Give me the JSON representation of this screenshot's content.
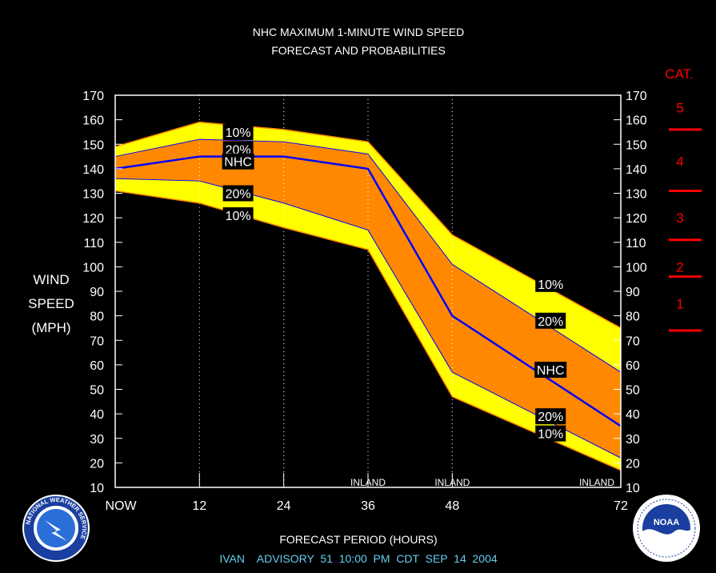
{
  "chart_data": {
    "type": "area",
    "title": "NHC MAXIMUM 1-MINUTE WIND SPEED",
    "subtitle": "FORECAST AND PROBABILITIES",
    "ylabel": [
      "WIND",
      "SPEED",
      "(MPH)"
    ],
    "xlabel": "FORECAST PERIOD (HOURS)",
    "footer": "IVAN    ADVISORY  51  10:00  PM  CDT  SEP  14  2004",
    "ylim": [
      10,
      170
    ],
    "xlim": [
      0,
      72
    ],
    "x_ticks": [
      {
        "x": 0,
        "label": "NOW"
      },
      {
        "x": 12,
        "label": "12"
      },
      {
        "x": 24,
        "label": "24"
      },
      {
        "x": 36,
        "label": "36"
      },
      {
        "x": 48,
        "label": "48"
      },
      {
        "x": 72,
        "label": "72"
      }
    ],
    "y_ticks": [
      10,
      20,
      30,
      40,
      50,
      60,
      70,
      80,
      90,
      100,
      110,
      120,
      130,
      140,
      150,
      160,
      170
    ],
    "inland_markers": [
      {
        "x": 36,
        "label": "INLAND"
      },
      {
        "x": 48,
        "label": "INLAND"
      },
      {
        "x": 72,
        "label": "INLAND"
      }
    ],
    "x": [
      0,
      12,
      24,
      36,
      48,
      72
    ],
    "series": [
      {
        "name": "10%",
        "kind": "upper",
        "values": [
          149,
          159,
          156,
          151,
          113,
          75
        ]
      },
      {
        "name": "20%",
        "kind": "upper",
        "values": [
          145,
          152,
          151,
          146,
          101,
          57
        ]
      },
      {
        "name": "NHC",
        "kind": "forecast",
        "values": [
          140,
          145,
          145,
          140,
          80,
          35
        ]
      },
      {
        "name": "20%",
        "kind": "lower",
        "values": [
          136,
          135,
          126,
          115,
          57,
          22
        ]
      },
      {
        "name": "10%",
        "kind": "lower",
        "values": [
          131,
          126,
          116,
          107,
          47,
          17
        ]
      }
    ],
    "series_labels": [
      {
        "text": "10%",
        "x": 17.5,
        "y": 155
      },
      {
        "text": "20%",
        "x": 17.5,
        "y": 148
      },
      {
        "text": "NHC",
        "x": 17.5,
        "y": 143
      },
      {
        "text": "20%",
        "x": 17.5,
        "y": 130
      },
      {
        "text": "10%",
        "x": 17.5,
        "y": 121
      },
      {
        "text": "10%",
        "x": 62,
        "y": 93
      },
      {
        "text": "20%",
        "x": 62,
        "y": 78
      },
      {
        "text": "NHC",
        "x": 62,
        "y": 58
      },
      {
        "text": "20%",
        "x": 62,
        "y": 39
      },
      {
        "text": "10%",
        "x": 62,
        "y": 32
      }
    ],
    "category_title": "CAT.",
    "categories": [
      {
        "label": "5",
        "y": 165
      },
      {
        "label": "4",
        "y": 143
      },
      {
        "label": "3",
        "y": 120
      },
      {
        "label": "2",
        "y": 100
      },
      {
        "label": "1",
        "y": 85
      }
    ],
    "category_bounds": [
      156,
      131,
      111,
      96,
      74
    ],
    "colors": {
      "band10": "#ffff00",
      "band20": "#ff8800",
      "forecast": "#0000ff",
      "edge10": "#ff8800",
      "edge20": "#0000ff",
      "category": "#ff0000",
      "footer": "#66ccee",
      "frame": "#ffffff"
    }
  },
  "logos": {
    "nws": "NATIONAL WEATHER SERVICE",
    "noaa": "NOAA"
  }
}
